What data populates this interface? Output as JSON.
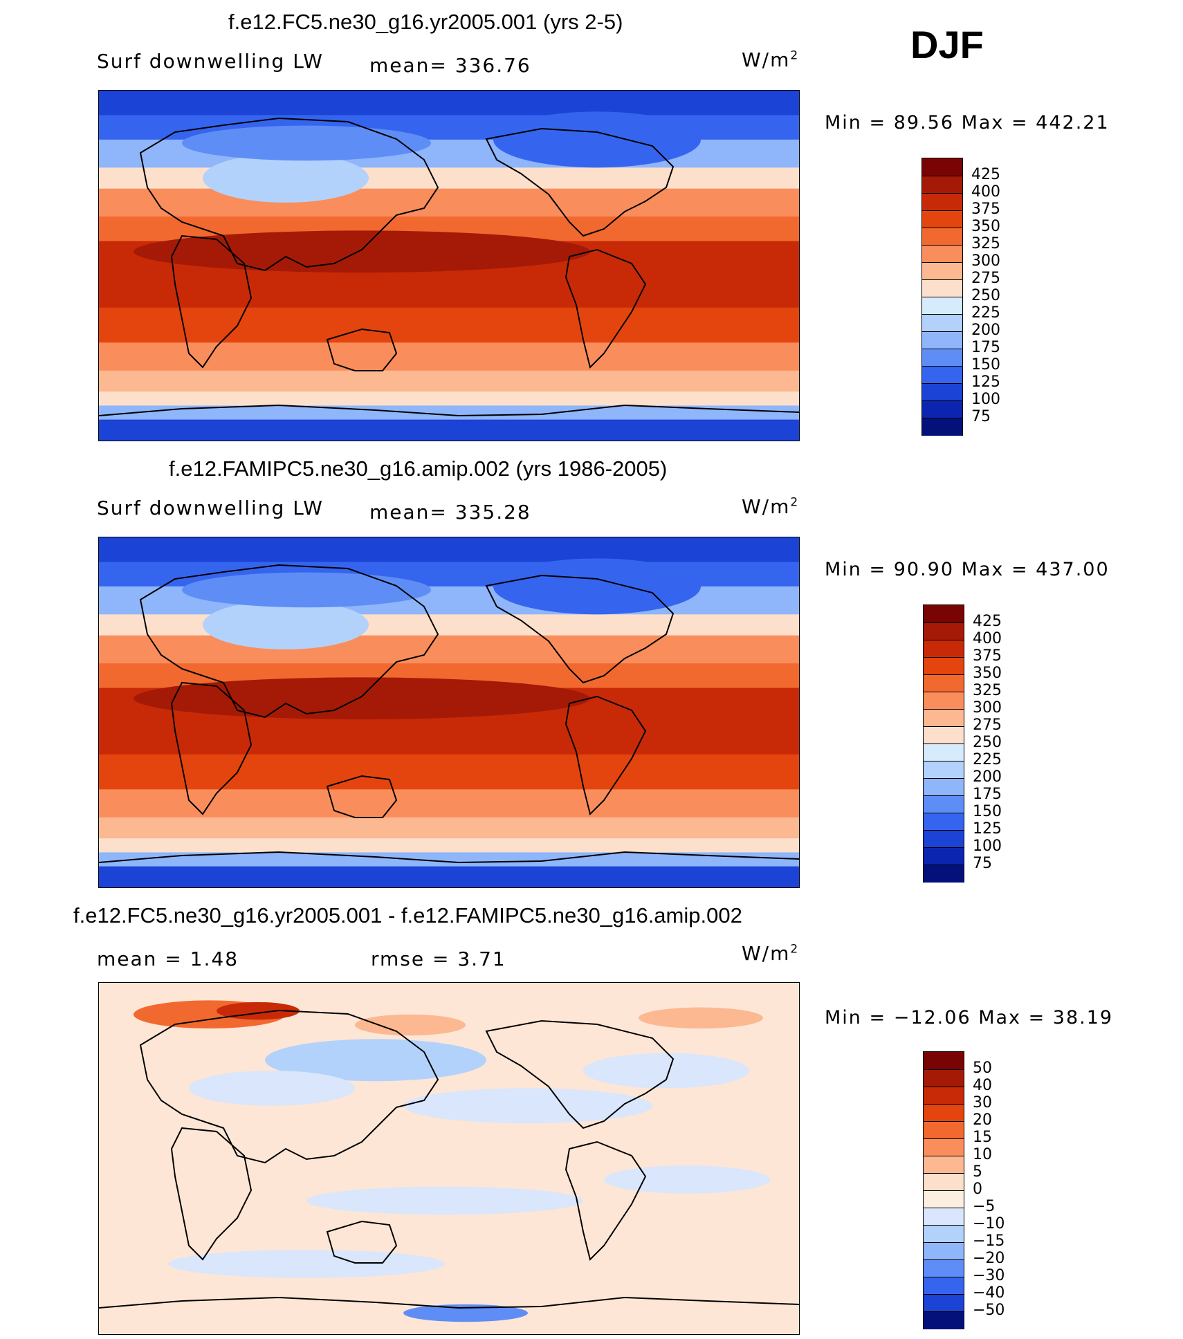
{
  "season": "DJF",
  "panels": [
    {
      "title": "f.e12.FC5.ne30_g16.yr2005.001 (yrs 2-5)",
      "variable": "Surf downwelling LW",
      "stat1": "mean= 336.76",
      "stat2": "",
      "units": "W/m",
      "units_sup": "2",
      "minmax": "Min =   89.56 Max = 442.21",
      "colorbar": {
        "labels": [
          "425",
          "400",
          "375",
          "350",
          "325",
          "300",
          "275",
          "250",
          "225",
          "200",
          "175",
          "150",
          "125",
          "100",
          "75"
        ],
        "colors": [
          "#7a0403",
          "#a51a06",
          "#c82a08",
          "#e4450e",
          "#f2692f",
          "#f98e5c",
          "#fcb890",
          "#fde0cc",
          "#d6ebfb",
          "#b3d2fb",
          "#8fb5fa",
          "#5e8ef5",
          "#3565ee",
          "#1b43d6",
          "#0b25b0",
          "#04117a"
        ]
      },
      "field": "base"
    },
    {
      "title": "f.e12.FAMIPC5.ne30_g16.amip.002 (yrs 1986-2005)",
      "variable": "Surf downwelling LW",
      "stat1": "mean= 335.28",
      "stat2": "",
      "units": "W/m",
      "units_sup": "2",
      "minmax": "Min =   90.90 Max = 437.00",
      "colorbar": {
        "labels": [
          "425",
          "400",
          "375",
          "350",
          "325",
          "300",
          "275",
          "250",
          "225",
          "200",
          "175",
          "150",
          "125",
          "100",
          "75"
        ],
        "colors": [
          "#7a0403",
          "#a51a06",
          "#c82a08",
          "#e4450e",
          "#f2692f",
          "#f98e5c",
          "#fcb890",
          "#fde0cc",
          "#d6ebfb",
          "#b3d2fb",
          "#8fb5fa",
          "#5e8ef5",
          "#3565ee",
          "#1b43d6",
          "#0b25b0",
          "#04117a"
        ]
      },
      "field": "base"
    },
    {
      "title": "f.e12.FC5.ne30_g16.yr2005.001 - f.e12.FAMIPC5.ne30_g16.amip.002",
      "variable": "mean =     1.48",
      "stat1": "rmse =     3.71",
      "stat2": "",
      "units": "W/m",
      "units_sup": "2",
      "minmax": "Min = −12.06 Max =   38.19",
      "colorbar": {
        "labels": [
          "50",
          "40",
          "30",
          "20",
          "15",
          "10",
          "5",
          "0",
          "−5",
          "−10",
          "−15",
          "−20",
          "−30",
          "−40",
          "−50"
        ],
        "colors": [
          "#7a0403",
          "#a51a06",
          "#c82a08",
          "#e4450e",
          "#f2692f",
          "#f98e5c",
          "#fcb890",
          "#fde0cc",
          "#fdeee2",
          "#d9e6fb",
          "#b3d2fb",
          "#8fb5fa",
          "#5e8ef5",
          "#3565ee",
          "#1b43d6",
          "#04117a"
        ]
      },
      "field": "diff"
    }
  ]
}
